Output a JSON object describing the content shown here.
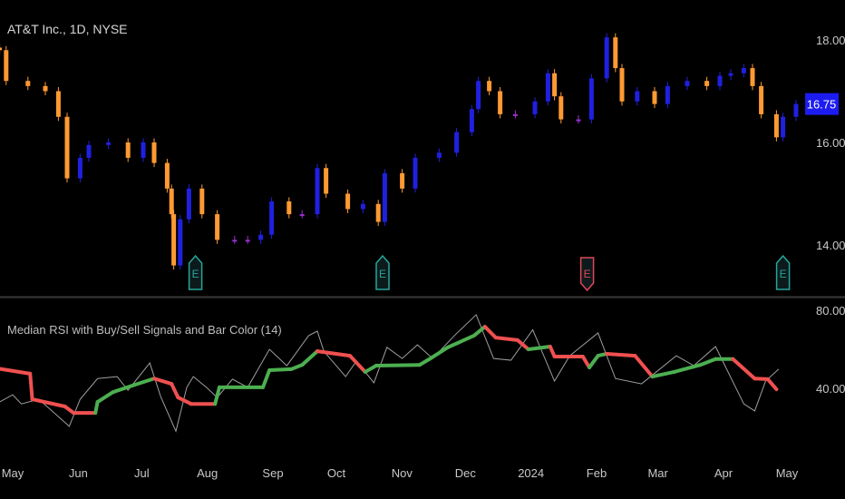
{
  "header": {
    "title": "AT&T Inc., 1D, NYSE"
  },
  "indicator": {
    "title": "Median RSI with Buy/Sell Signals and Bar Color (14)"
  },
  "colors": {
    "background": "#000000",
    "bull": "#2020e0",
    "neutral": "#9b30d0",
    "bear": "#ff9a33",
    "median_up": "#4caf50",
    "median_down": "#f05050",
    "rsi_line": "#9e9e9e",
    "last_price_bg": "#1c1cf2",
    "earnings_good": "#26a69a",
    "earnings_bad": "#e0485a"
  },
  "chart_data": [
    {
      "type": "candlestick",
      "title": "AT&T Inc., 1D, NYSE",
      "ylim": [
        13.3,
        18.6
      ],
      "y_ticks": [
        "14.00",
        "16.00",
        "18.00"
      ],
      "last_price": "16.75",
      "x_ticks": [
        {
          "label": "May",
          "date": "2023-05-01"
        },
        {
          "label": "Jun",
          "date": "2023-06-01"
        },
        {
          "label": "Jul",
          "date": "2023-07-01"
        },
        {
          "label": "Aug",
          "date": "2023-08-01"
        },
        {
          "label": "Sep",
          "date": "2023-09-01"
        },
        {
          "label": "Oct",
          "date": "2023-10-01"
        },
        {
          "label": "Nov",
          "date": "2023-11-01"
        },
        {
          "label": "Dec",
          "date": "2023-12-01"
        },
        {
          "label": "2024",
          "date": "2024-01-01"
        },
        {
          "label": "Feb",
          "date": "2024-02-01"
        },
        {
          "label": "Mar",
          "date": "2024-03-01"
        },
        {
          "label": "Apr",
          "date": "2024-04-01"
        },
        {
          "label": "May",
          "date": "2024-05-01"
        }
      ],
      "closes": [
        [
          "2023-04-25",
          17.8
        ],
        [
          "2023-04-28",
          17.2
        ],
        [
          "2023-05-08",
          17.1
        ],
        [
          "2023-05-16",
          17.0
        ],
        [
          "2023-05-22",
          16.5
        ],
        [
          "2023-05-26",
          15.3
        ],
        [
          "2023-06-01",
          15.7
        ],
        [
          "2023-06-05",
          15.95
        ],
        [
          "2023-06-14",
          16.0
        ],
        [
          "2023-06-23",
          15.7
        ],
        [
          "2023-06-30",
          16.0
        ],
        [
          "2023-07-05",
          15.6
        ],
        [
          "2023-07-11",
          15.1
        ],
        [
          "2023-07-13",
          14.6
        ],
        [
          "2023-07-14",
          13.6
        ],
        [
          "2023-07-17",
          14.5
        ],
        [
          "2023-07-21",
          15.1
        ],
        [
          "2023-07-27",
          14.6
        ],
        [
          "2023-08-03",
          14.1
        ],
        [
          "2023-08-11",
          14.1
        ],
        [
          "2023-08-17",
          14.1
        ],
        [
          "2023-08-23",
          14.2
        ],
        [
          "2023-08-28",
          14.85
        ],
        [
          "2023-09-05",
          14.6
        ],
        [
          "2023-09-11",
          14.6
        ],
        [
          "2023-09-18",
          15.5
        ],
        [
          "2023-09-22",
          15.0
        ],
        [
          "2023-10-02",
          14.7
        ],
        [
          "2023-10-09",
          14.8
        ],
        [
          "2023-10-16",
          14.45
        ],
        [
          "2023-10-19",
          15.4
        ],
        [
          "2023-10-27",
          15.1
        ],
        [
          "2023-11-02",
          15.7
        ],
        [
          "2023-11-13",
          15.8
        ],
        [
          "2023-11-21",
          16.2
        ],
        [
          "2023-11-28",
          16.65
        ],
        [
          "2023-12-01",
          17.2
        ],
        [
          "2023-12-06",
          17.0
        ],
        [
          "2023-12-11",
          16.55
        ],
        [
          "2023-12-18",
          16.55
        ],
        [
          "2023-12-27",
          16.8
        ],
        [
          "2024-01-02",
          17.35
        ],
        [
          "2024-01-05",
          16.9
        ],
        [
          "2024-01-08",
          16.45
        ],
        [
          "2024-01-16",
          16.45
        ],
        [
          "2024-01-22",
          17.25
        ],
        [
          "2024-01-29",
          18.05
        ],
        [
          "2024-02-02",
          17.45
        ],
        [
          "2024-02-05",
          16.8
        ],
        [
          "2024-02-12",
          17.0
        ],
        [
          "2024-02-20",
          16.75
        ],
        [
          "2024-02-26",
          17.1
        ],
        [
          "2024-03-06",
          17.2
        ],
        [
          "2024-03-15",
          17.1
        ],
        [
          "2024-03-21",
          17.3
        ],
        [
          "2024-03-26",
          17.35
        ],
        [
          "2024-04-01",
          17.45
        ],
        [
          "2024-04-05",
          17.1
        ],
        [
          "2024-04-09",
          16.55
        ],
        [
          "2024-04-16",
          16.1
        ],
        [
          "2024-04-19",
          16.5
        ],
        [
          "2024-04-25",
          16.75
        ]
      ],
      "earnings": [
        {
          "label": "E",
          "date": "2023-07-24",
          "result": "good"
        },
        {
          "label": "E",
          "date": "2023-10-18",
          "result": "good"
        },
        {
          "label": "E",
          "date": "2024-01-20",
          "result": "bad"
        },
        {
          "label": "E",
          "date": "2024-04-19",
          "result": "good"
        }
      ]
    },
    {
      "type": "line",
      "title": "Median RSI with Buy/Sell Signals and Bar Color (14)",
      "ylim": [
        10,
        85
      ],
      "y_ticks": [
        "40.00",
        "80.00"
      ],
      "series": [
        {
          "key": "median",
          "values": [
            [
              "2023-04-25",
              50
            ],
            [
              "2023-05-09",
              47.5
            ],
            [
              "2023-05-10",
              34.4
            ],
            [
              "2023-05-25",
              30.7
            ],
            [
              "2023-05-29",
              27.4
            ],
            [
              "2023-06-08",
              27.4
            ],
            [
              "2023-06-09",
              33
            ],
            [
              "2023-06-16",
              38
            ],
            [
              "2023-06-25",
              41.4
            ],
            [
              "2023-07-05",
              45
            ],
            [
              "2023-07-13",
              42.3
            ],
            [
              "2023-07-16",
              35.3
            ],
            [
              "2023-07-22",
              32
            ],
            [
              "2023-08-02",
              32
            ],
            [
              "2023-08-04",
              40.5
            ],
            [
              "2023-08-24",
              40.5
            ],
            [
              "2023-08-27",
              49.3
            ],
            [
              "2023-09-06",
              49.8
            ],
            [
              "2023-09-11",
              52
            ],
            [
              "2023-09-18",
              59
            ],
            [
              "2023-10-03",
              56.7
            ],
            [
              "2023-10-10",
              48.4
            ],
            [
              "2023-10-15",
              51.6
            ],
            [
              "2023-11-04",
              52
            ],
            [
              "2023-11-09",
              55.3
            ],
            [
              "2023-11-17",
              61
            ],
            [
              "2023-11-29",
              67
            ],
            [
              "2023-12-04",
              71.6
            ],
            [
              "2023-12-09",
              66
            ],
            [
              "2023-12-19",
              64.7
            ],
            [
              "2023-12-24",
              60
            ],
            [
              "2024-01-03",
              61.4
            ],
            [
              "2024-01-05",
              56.3
            ],
            [
              "2024-01-18",
              56.3
            ],
            [
              "2024-01-21",
              50.7
            ],
            [
              "2024-01-25",
              56.7
            ],
            [
              "2024-01-29",
              57.7
            ],
            [
              "2024-02-11",
              56.7
            ],
            [
              "2024-02-19",
              46
            ],
            [
              "2024-02-29",
              48.4
            ],
            [
              "2024-03-12",
              52
            ],
            [
              "2024-03-19",
              55
            ],
            [
              "2024-03-27",
              55
            ],
            [
              "2024-04-06",
              45
            ],
            [
              "2024-04-12",
              44.7
            ],
            [
              "2024-04-16",
              39.5
            ]
          ]
        },
        {
          "key": "rsi",
          "values": [
            [
              "2023-04-25",
              33
            ],
            [
              "2023-05-01",
              36.7
            ],
            [
              "2023-05-05",
              32
            ],
            [
              "2023-05-13",
              34.4
            ],
            [
              "2023-05-27",
              20.5
            ],
            [
              "2023-06-01",
              34.4
            ],
            [
              "2023-06-09",
              45
            ],
            [
              "2023-06-18",
              46
            ],
            [
              "2023-06-23",
              39
            ],
            [
              "2023-07-03",
              53
            ],
            [
              "2023-07-08",
              35.8
            ],
            [
              "2023-07-15",
              18
            ],
            [
              "2023-07-20",
              40.5
            ],
            [
              "2023-07-23",
              46
            ],
            [
              "2023-07-29",
              40.5
            ],
            [
              "2023-08-03",
              35.3
            ],
            [
              "2023-08-10",
              44.7
            ],
            [
              "2023-08-17",
              40.5
            ],
            [
              "2023-08-27",
              60
            ],
            [
              "2023-09-04",
              51.6
            ],
            [
              "2023-09-14",
              67
            ],
            [
              "2023-09-18",
              69.3
            ],
            [
              "2023-09-21",
              59
            ],
            [
              "2023-10-01",
              46
            ],
            [
              "2023-10-06",
              54
            ],
            [
              "2023-10-14",
              42.8
            ],
            [
              "2023-10-20",
              61
            ],
            [
              "2023-10-27",
              55.3
            ],
            [
              "2023-11-03",
              62.3
            ],
            [
              "2023-11-10",
              55.3
            ],
            [
              "2023-11-20",
              67
            ],
            [
              "2023-11-30",
              77.7
            ],
            [
              "2023-12-08",
              55.3
            ],
            [
              "2023-12-16",
              54.4
            ],
            [
              "2023-12-26",
              70
            ],
            [
              "2024-01-05",
              43.7
            ],
            [
              "2024-01-12",
              56.7
            ],
            [
              "2024-01-25",
              68.4
            ],
            [
              "2024-02-02",
              45
            ],
            [
              "2024-02-14",
              42.3
            ],
            [
              "2024-03-01",
              56.7
            ],
            [
              "2024-03-09",
              51.6
            ],
            [
              "2024-03-19",
              61.4
            ],
            [
              "2024-04-01",
              32
            ],
            [
              "2024-04-06",
              28.4
            ],
            [
              "2024-04-11",
              43.7
            ],
            [
              "2024-04-17",
              49.8
            ]
          ]
        }
      ]
    }
  ]
}
